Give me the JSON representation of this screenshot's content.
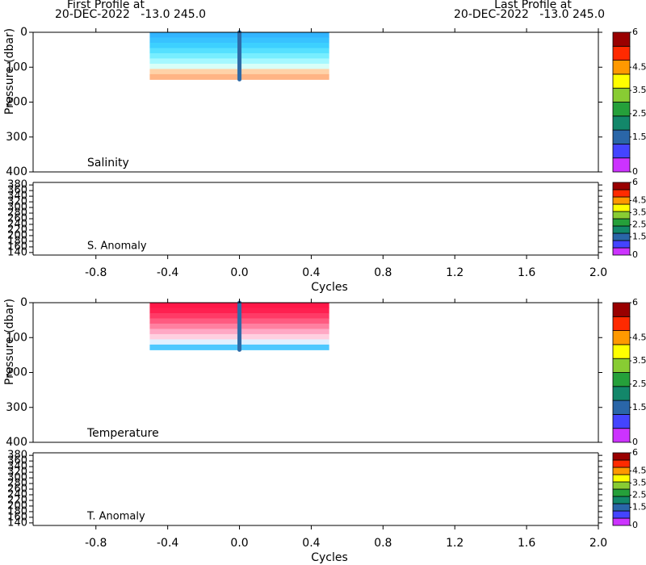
{
  "header": {
    "first_label": "First Profile at",
    "first_value": "20-DEC-2022   -13.0 245.0",
    "last_label": "Last Profile at",
    "last_value": "20-DEC-2022   -13.0 245.0"
  },
  "chart_data": [
    {
      "type": "profile",
      "name": "Salinity",
      "ylabel": "Pressure (dbar)",
      "xlim": [
        -1.15,
        2.0
      ],
      "ylim": [
        0,
        400
      ],
      "yticks": [
        0,
        100,
        200,
        300,
        400
      ],
      "xticks": [
        {
          "value": -0.8,
          "label": "-0.8"
        },
        {
          "value": -0.4,
          "label": "-0.4"
        },
        {
          "value": 0.0,
          "label": "0.0"
        },
        {
          "value": 0.4,
          "label": "0.4"
        },
        {
          "value": 0.8,
          "label": "0.8"
        },
        {
          "value": 1.2,
          "label": "1.2"
        },
        {
          "value": 1.6,
          "label": "1.6"
        },
        {
          "value": 2.0,
          "label": "2.0"
        }
      ],
      "band": {
        "x": [
          -0.5,
          0.5
        ],
        "pressure": [
          0,
          135
        ],
        "colors": [
          "#33b5ff",
          "#38c2ff",
          "#3dd0ff",
          "#55e0ff",
          "#77eeff",
          "#a5f8ff",
          "#d8fff8",
          "#ffd2a8",
          "#ffb484"
        ]
      },
      "line": {
        "x": 0,
        "pressure": [
          0,
          135
        ],
        "color": "#2e6aa6"
      },
      "colorbar": {
        "lim": [
          0,
          6
        ],
        "ticks": [
          0,
          1.5,
          2.5,
          3.5,
          4.5,
          6
        ],
        "colors": [
          "#cc33ff",
          "#4444ff",
          "#2a66a8",
          "#13876a",
          "#25a03a",
          "#88cc33",
          "#ffff00",
          "#ff9900",
          "#ff2a00",
          "#990000"
        ]
      }
    },
    {
      "type": "anomaly",
      "name": "S. Anomaly",
      "xlabel": "Cycles",
      "xlim": [
        -1.15,
        2.0
      ],
      "ylim": [
        131,
        389
      ],
      "yticks": [
        140,
        160,
        180,
        200,
        220,
        240,
        260,
        280,
        300,
        320,
        340,
        360,
        380
      ],
      "xticks": [
        {
          "value": -0.8,
          "label": "-0.8"
        },
        {
          "value": -0.4,
          "label": "-0.4"
        },
        {
          "value": 0.0,
          "label": "0.0"
        },
        {
          "value": 0.4,
          "label": "0.4"
        },
        {
          "value": 0.8,
          "label": "0.8"
        },
        {
          "value": 1.2,
          "label": "1.2"
        },
        {
          "value": 1.6,
          "label": "1.6"
        },
        {
          "value": 2.0,
          "label": "2.0"
        }
      ],
      "colorbar": {
        "lim": [
          0,
          6
        ],
        "ticks": [
          0,
          1.5,
          2.5,
          3.5,
          4.5,
          6
        ],
        "colors": [
          "#cc33ff",
          "#4444ff",
          "#2a66a8",
          "#13876a",
          "#25a03a",
          "#88cc33",
          "#ffff00",
          "#ff9900",
          "#ff2a00",
          "#990000"
        ]
      }
    },
    {
      "type": "profile",
      "name": "Temperature",
      "ylabel": "Pressure (dbar)",
      "xlim": [
        -1.15,
        2.0
      ],
      "ylim": [
        0,
        400
      ],
      "yticks": [
        0,
        100,
        200,
        300,
        400
      ],
      "xticks": [
        {
          "value": -0.8,
          "label": "-0.8"
        },
        {
          "value": -0.4,
          "label": "-0.4"
        },
        {
          "value": 0.0,
          "label": "0.0"
        },
        {
          "value": 0.4,
          "label": "0.4"
        },
        {
          "value": 0.8,
          "label": "0.8"
        },
        {
          "value": 1.2,
          "label": "1.2"
        },
        {
          "value": 1.6,
          "label": "1.6"
        },
        {
          "value": 2.0,
          "label": "2.0"
        }
      ],
      "band": {
        "x": [
          -0.5,
          0.5
        ],
        "pressure": [
          0,
          135
        ],
        "colors": [
          "#ff1848",
          "#ff2050",
          "#ff3a66",
          "#ff5a80",
          "#ff80a0",
          "#ffa8c4",
          "#ffd0e0",
          "#e0f0ff",
          "#4cc8ff"
        ]
      },
      "line": {
        "x": 0,
        "pressure": [
          0,
          135
        ],
        "color": "#2e6aa6"
      },
      "colorbar": {
        "lim": [
          0,
          6
        ],
        "ticks": [
          0,
          1.5,
          2.5,
          3.5,
          4.5,
          6
        ],
        "colors": [
          "#cc33ff",
          "#4444ff",
          "#2a66a8",
          "#13876a",
          "#25a03a",
          "#88cc33",
          "#ffff00",
          "#ff9900",
          "#ff2a00",
          "#990000"
        ]
      }
    },
    {
      "type": "anomaly",
      "name": "T. Anomaly",
      "xlabel": "Cycles",
      "xlim": [
        -1.15,
        2.0
      ],
      "ylim": [
        131,
        389
      ],
      "yticks": [
        140,
        160,
        180,
        200,
        220,
        240,
        260,
        280,
        300,
        320,
        340,
        360,
        380
      ],
      "xticks": [
        {
          "value": -0.8,
          "label": "-0.8"
        },
        {
          "value": -0.4,
          "label": "-0.4"
        },
        {
          "value": 0.0,
          "label": "0.0"
        },
        {
          "value": 0.4,
          "label": "0.4"
        },
        {
          "value": 0.8,
          "label": "0.8"
        },
        {
          "value": 1.2,
          "label": "1.2"
        },
        {
          "value": 1.6,
          "label": "1.6"
        },
        {
          "value": 2.0,
          "label": "2.0"
        }
      ],
      "colorbar": {
        "lim": [
          0,
          6
        ],
        "ticks": [
          0,
          1.5,
          2.5,
          3.5,
          4.5,
          6
        ],
        "colors": [
          "#cc33ff",
          "#4444ff",
          "#2a66a8",
          "#13876a",
          "#25a03a",
          "#88cc33",
          "#ffff00",
          "#ff9900",
          "#ff2a00",
          "#990000"
        ]
      }
    }
  ]
}
